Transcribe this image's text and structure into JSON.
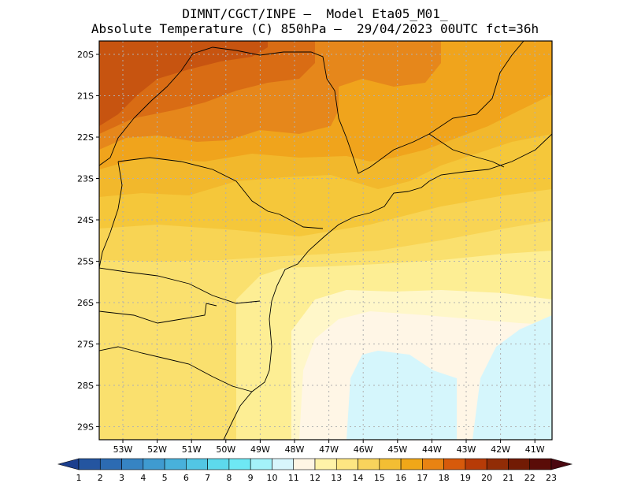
{
  "title_line1": "DIMNT/CGCT/INPE –  Model Eta05_M01_",
  "title_line2": "Absolute Temperature (C) 850hPa –  29/04/2023 00UTC fct=36h",
  "lat_labels": [
    "20S",
    "21S",
    "22S",
    "23S",
    "24S",
    "25S",
    "26S",
    "27S",
    "28S",
    "29S"
  ],
  "lon_labels": [
    "53W",
    "52W",
    "51W",
    "50W",
    "49W",
    "48W",
    "47W",
    "46W",
    "45W",
    "44W",
    "43W",
    "42W",
    "41W"
  ],
  "colorbar": {
    "labels": [
      "1",
      "2",
      "3",
      "4",
      "5",
      "6",
      "7",
      "8",
      "9",
      "10",
      "11",
      "12",
      "13",
      "14",
      "15",
      "16",
      "17",
      "18",
      "19",
      "20",
      "21",
      "22",
      "23"
    ],
    "colors": [
      "#1c3f8e",
      "#2455a0",
      "#2c6bb2",
      "#3684c3",
      "#3f9bd0",
      "#48b1db",
      "#52c6e4",
      "#5dd9ec",
      "#6ee8f4",
      "#a4f2fa",
      "#d8f6fc",
      "#fff6e4",
      "#fff3a8",
      "#fde682",
      "#f8d35c",
      "#f3be33",
      "#f0a718",
      "#e98312",
      "#d75a0b",
      "#b73b07",
      "#912c06",
      "#721b04",
      "#5a0c08",
      "#4a0810"
    ]
  },
  "colors": {
    "t22": "#c75410",
    "t21": "#d96c14",
    "t20": "#e6871b",
    "t19": "#f0a41c",
    "t18": "#f2b82c",
    "t17": "#f5c73a",
    "t16": "#f8d454",
    "t15": "#fae06e",
    "t14": "#fdee94",
    "t13": "#fff7c9",
    "t12": "#fff6e6",
    "t11": "#d5f6fc",
    "grid": "#b0b0b0",
    "border": "#000000"
  }
}
